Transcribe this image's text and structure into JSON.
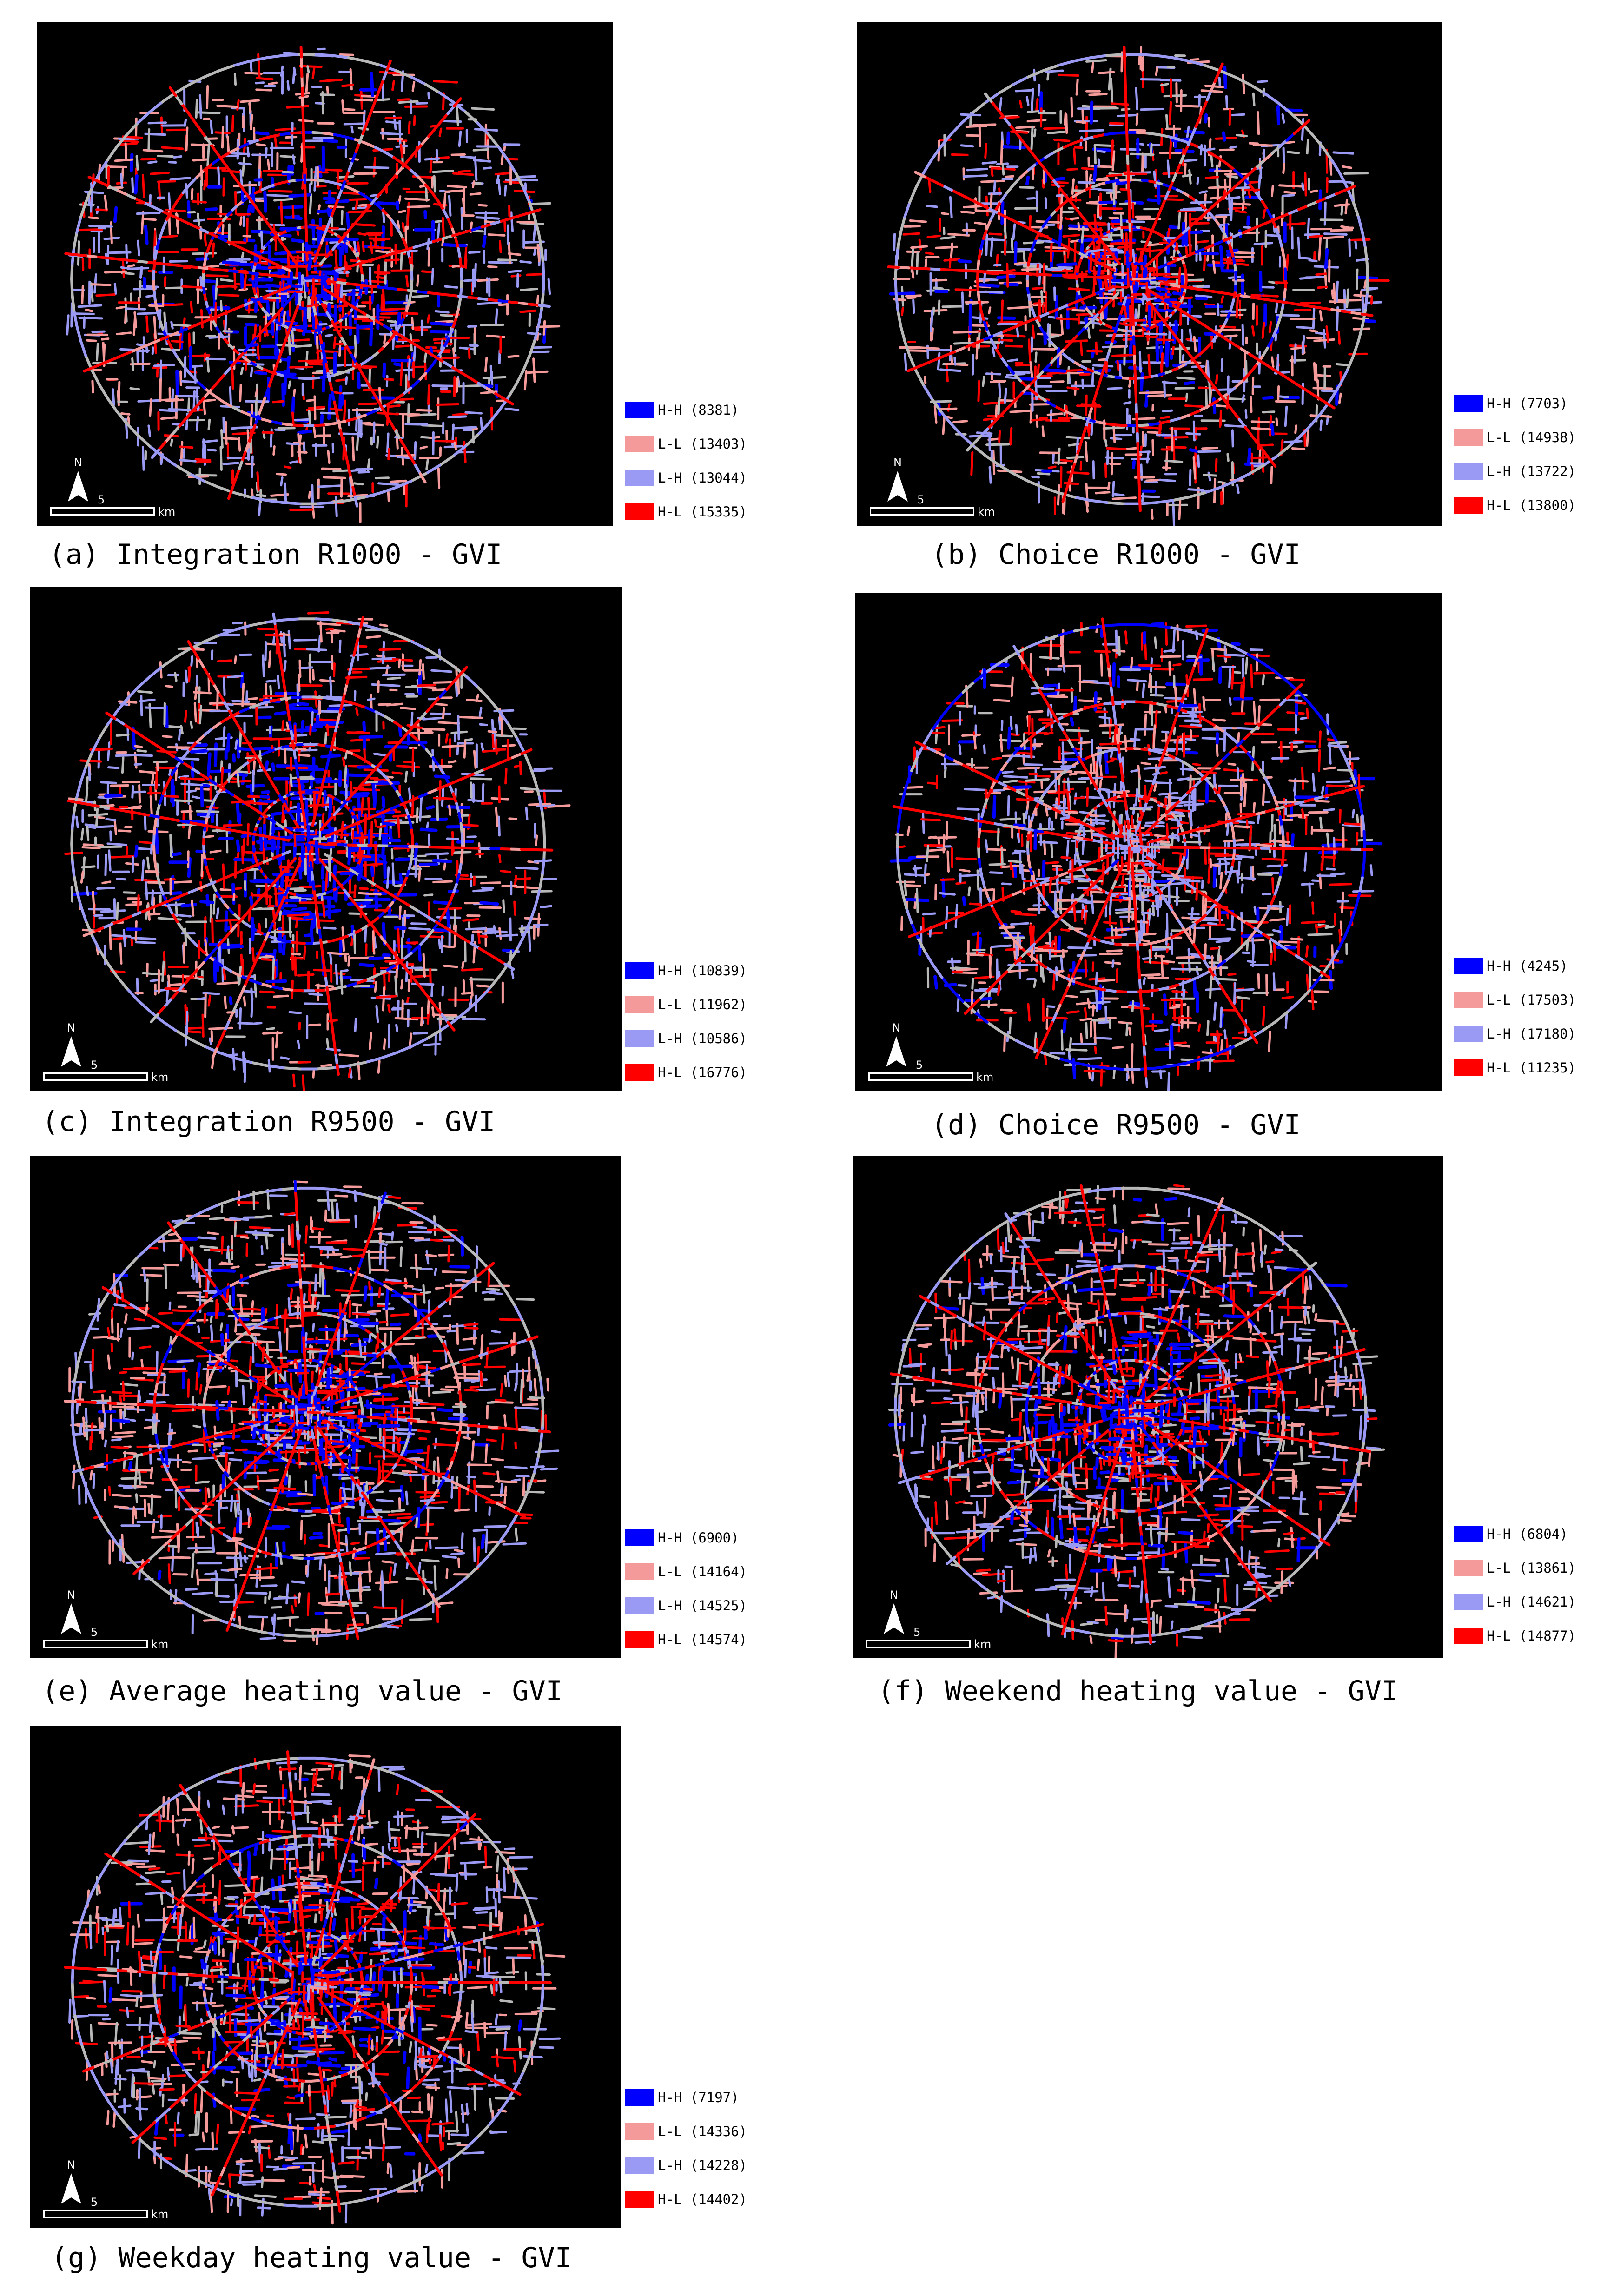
{
  "colors": {
    "HH": "#0000ff",
    "LL": "#f59a9a",
    "LH": "#9a9af5",
    "HL": "#ff0000",
    "grey": "#b8b8b8",
    "background": "#000000"
  },
  "map_furniture": {
    "north_label": "N",
    "scale_value": "5",
    "scale_unit": "km"
  },
  "panels": [
    {
      "caption": "(a) Integration R1000 - GVI",
      "legend": [
        {
          "key": "H-H",
          "label": "H-H (8381)",
          "color": "#0000ff"
        },
        {
          "key": "L-L",
          "label": "L-L (13403)",
          "color": "#f59a9a"
        },
        {
          "key": "L-H",
          "label": "L-H (13044)",
          "color": "#9a9af5"
        },
        {
          "key": "H-L",
          "label": "H-L (15335)",
          "color": "#ff0000"
        }
      ]
    },
    {
      "caption": "(b) Choice R1000 - GVI",
      "legend": [
        {
          "key": "H-H",
          "label": "H-H (7703)",
          "color": "#0000ff"
        },
        {
          "key": "L-L",
          "label": "L-L (14938)",
          "color": "#f59a9a"
        },
        {
          "key": "L-H",
          "label": "L-H (13722)",
          "color": "#9a9af5"
        },
        {
          "key": "H-L",
          "label": "H-L (13800)",
          "color": "#ff0000"
        }
      ]
    },
    {
      "caption": "(c) Integration R9500 - GVI",
      "legend": [
        {
          "key": "H-H",
          "label": "H-H (10839)",
          "color": "#0000ff"
        },
        {
          "key": "L-L",
          "label": "L-L (11962)",
          "color": "#f59a9a"
        },
        {
          "key": "L-H",
          "label": "L-H (10586)",
          "color": "#9a9af5"
        },
        {
          "key": "H-L",
          "label": "H-L (16776)",
          "color": "#ff0000"
        }
      ]
    },
    {
      "caption": "(d) Choice R9500 - GVI",
      "legend": [
        {
          "key": "H-H",
          "label": "H-H (4245)",
          "color": "#0000ff"
        },
        {
          "key": "L-L",
          "label": "L-L (17503)",
          "color": "#f59a9a"
        },
        {
          "key": "L-H",
          "label": "L-H (17180)",
          "color": "#9a9af5"
        },
        {
          "key": "H-L",
          "label": "H-L (11235)",
          "color": "#ff0000"
        }
      ]
    },
    {
      "caption": "(e) Average heating value - GVI",
      "legend": [
        {
          "key": "H-H",
          "label": "H-H (6900)",
          "color": "#0000ff"
        },
        {
          "key": "L-L",
          "label": "L-L (14164)",
          "color": "#f59a9a"
        },
        {
          "key": "L-H",
          "label": "L-H (14525)",
          "color": "#9a9af5"
        },
        {
          "key": "H-L",
          "label": "H-L (14574)",
          "color": "#ff0000"
        }
      ]
    },
    {
      "caption": "(f) Weekend heating value - GVI",
      "legend": [
        {
          "key": "H-H",
          "label": "H-H (6804)",
          "color": "#0000ff"
        },
        {
          "key": "L-L",
          "label": "L-L (13861)",
          "color": "#f59a9a"
        },
        {
          "key": "L-H",
          "label": "L-H (14621)",
          "color": "#9a9af5"
        },
        {
          "key": "H-L",
          "label": "H-L (14877)",
          "color": "#ff0000"
        }
      ]
    },
    {
      "caption": "(g) Weekday heating value - GVI",
      "legend": [
        {
          "key": "H-H",
          "label": "H-H (7197)",
          "color": "#0000ff"
        },
        {
          "key": "L-L",
          "label": "L-L (14336)",
          "color": "#f59a9a"
        },
        {
          "key": "L-H",
          "label": "L-H (14228)",
          "color": "#9a9af5"
        },
        {
          "key": "H-L",
          "label": "H-L (14402)",
          "color": "#ff0000"
        }
      ]
    }
  ]
}
